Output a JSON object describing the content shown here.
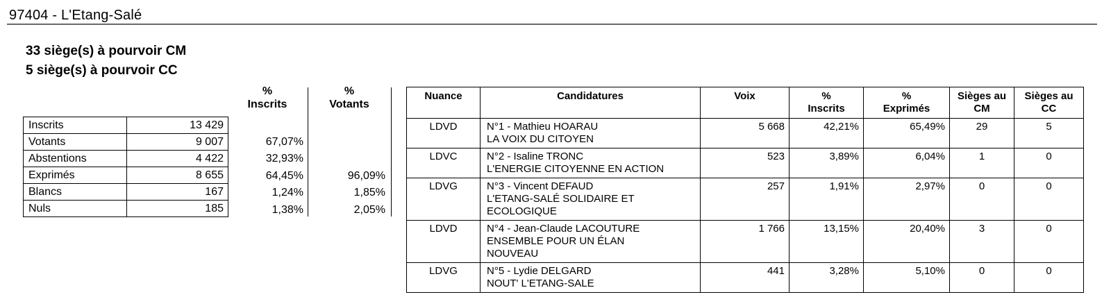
{
  "page": {
    "title": "97404 - L'Etang-Salé"
  },
  "summary": {
    "seats_cm": "33 siège(s) à pourvoir CM",
    "seats_cc": "5 siège(s) à pourvoir CC"
  },
  "participation": {
    "header_pct_inscrits": "%\nInscrits",
    "header_pct_votants": "%\nVotants",
    "rows": [
      {
        "label": "Inscrits",
        "value": "13 429",
        "pct_inscrits": "",
        "pct_votants": ""
      },
      {
        "label": "Votants",
        "value": "9 007",
        "pct_inscrits": "67,07%",
        "pct_votants": ""
      },
      {
        "label": "Abstentions",
        "value": "4 422",
        "pct_inscrits": "32,93%",
        "pct_votants": ""
      },
      {
        "label": "Exprimés",
        "value": "8 655",
        "pct_inscrits": "64,45%",
        "pct_votants": "96,09%"
      },
      {
        "label": "Blancs",
        "value": "167",
        "pct_inscrits": "1,24%",
        "pct_votants": "1,85%"
      },
      {
        "label": "Nuls",
        "value": "185",
        "pct_inscrits": "1,38%",
        "pct_votants": "2,05%"
      }
    ]
  },
  "results": {
    "headers": [
      "Nuance",
      "Candidatures",
      "Voix",
      "%\nInscrits",
      "%\nExprimés",
      "Sièges au\nCM",
      "Sièges au\nCC"
    ],
    "rows": [
      {
        "nuance": "LDVD",
        "candidature_lines": [
          "N°1 - Mathieu HOARAU",
          "LA VOIX DU CITOYEN"
        ],
        "voix": "5 668",
        "pct_inscrits": "42,21%",
        "pct_exprimes": "65,49%",
        "sieges_cm": "29",
        "sieges_cc": "5"
      },
      {
        "nuance": "LDVC",
        "candidature_lines": [
          "N°2 - Isaline TRONC",
          "L'ENERGIE CITOYENNE EN ACTION"
        ],
        "voix": "523",
        "pct_inscrits": "3,89%",
        "pct_exprimes": "6,04%",
        "sieges_cm": "1",
        "sieges_cc": "0"
      },
      {
        "nuance": "LDVG",
        "candidature_lines": [
          "N°3 - Vincent DEFAUD",
          "L'ETANG-SALÉ SOLIDAIRE ET",
          "ECOLOGIQUE"
        ],
        "voix": "257",
        "pct_inscrits": "1,91%",
        "pct_exprimes": "2,97%",
        "sieges_cm": "0",
        "sieges_cc": "0"
      },
      {
        "nuance": "LDVD",
        "candidature_lines": [
          "N°4 - Jean-Claude LACOUTURE",
          "ENSEMBLE POUR UN ÉLAN",
          "NOUVEAU"
        ],
        "voix": "1 766",
        "pct_inscrits": "13,15%",
        "pct_exprimes": "20,40%",
        "sieges_cm": "3",
        "sieges_cc": "0"
      },
      {
        "nuance": "LDVG",
        "candidature_lines": [
          "N°5 - Lydie DELGARD",
          "NOUT' L'ETANG-SALE"
        ],
        "voix": "441",
        "pct_inscrits": "3,28%",
        "pct_exprimes": "5,10%",
        "sieges_cm": "0",
        "sieges_cc": "0"
      }
    ]
  }
}
